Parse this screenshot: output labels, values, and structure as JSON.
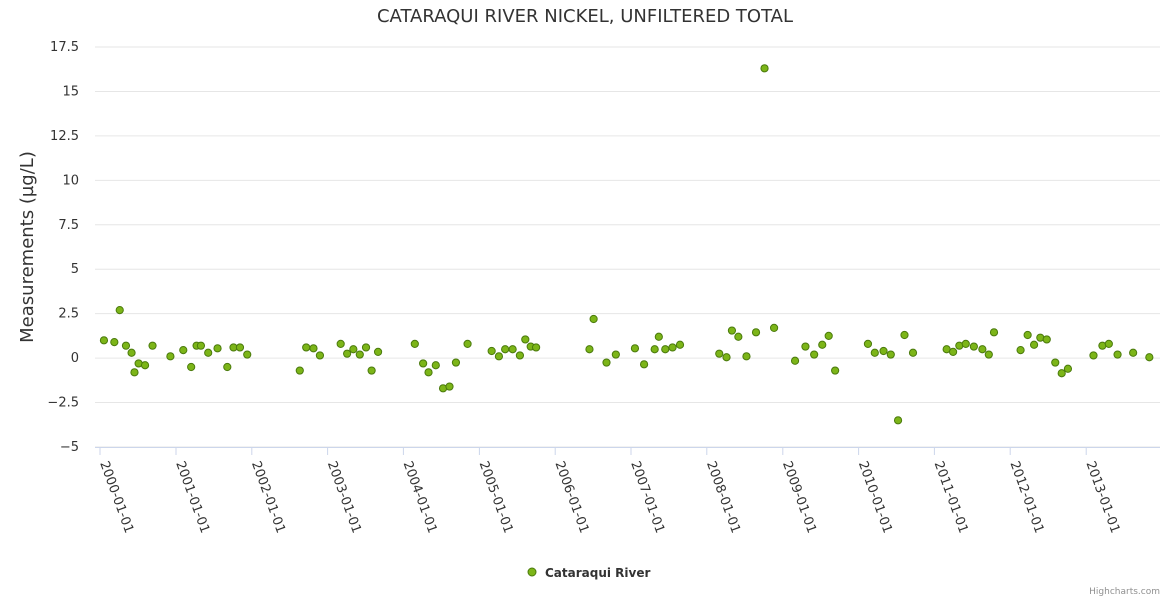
{
  "chart_data": {
    "type": "scatter",
    "title": "CATARAQUI RIVER NICKEL, UNFILTERED TOTAL",
    "xlabel": "",
    "ylabel": "Measurements (µg/L)",
    "xlim": [
      "2000-01-01",
      "2014-01-01"
    ],
    "ylim": [
      -5,
      17.5
    ],
    "y_ticks": [
      -5,
      -2.5,
      0,
      2.5,
      5,
      7.5,
      10,
      12.5,
      15,
      17.5
    ],
    "y_tick_labels": [
      "−5",
      "−2.5",
      "0",
      "2.5",
      "5",
      "7.5",
      "10",
      "12.5",
      "15",
      "17.5"
    ],
    "x_tick_labels": [
      "2000-01-01",
      "2001-01-01",
      "2002-01-01",
      "2003-01-01",
      "2004-01-01",
      "2005-01-01",
      "2006-01-01",
      "2007-01-01",
      "2008-01-01",
      "2009-01-01",
      "2010-01-01",
      "2011-01-01",
      "2012-01-01",
      "2013-01-01"
    ],
    "grid": true,
    "legend_position": "bottom-center",
    "colors": {
      "marker": "#7cb518",
      "marker_stroke": "#4a7a0c"
    },
    "series": [
      {
        "name": "Cataraqui River",
        "points": [
          [
            "2000-01-20",
            1.0
          ],
          [
            "2000-03-10",
            0.9
          ],
          [
            "2000-04-05",
            2.7
          ],
          [
            "2000-05-05",
            0.7
          ],
          [
            "2000-06-01",
            0.3
          ],
          [
            "2000-06-15",
            -0.8
          ],
          [
            "2000-07-05",
            -0.3
          ],
          [
            "2000-08-05",
            -0.4
          ],
          [
            "2000-09-10",
            0.7
          ],
          [
            "2000-12-05",
            0.1
          ],
          [
            "2001-02-05",
            0.45
          ],
          [
            "2001-03-15",
            -0.5
          ],
          [
            "2001-04-10",
            0.7
          ],
          [
            "2001-05-01",
            0.7
          ],
          [
            "2001-06-05",
            0.3
          ],
          [
            "2001-07-20",
            0.55
          ],
          [
            "2001-09-05",
            -0.5
          ],
          [
            "2001-10-05",
            0.6
          ],
          [
            "2001-11-05",
            0.6
          ],
          [
            "2001-12-10",
            0.2
          ],
          [
            "2002-08-20",
            -0.7
          ],
          [
            "2002-09-20",
            0.6
          ],
          [
            "2002-10-25",
            0.55
          ],
          [
            "2002-11-25",
            0.15
          ],
          [
            "2003-03-05",
            0.8
          ],
          [
            "2003-04-05",
            0.25
          ],
          [
            "2003-05-05",
            0.5
          ],
          [
            "2003-06-05",
            0.2
          ],
          [
            "2003-07-05",
            0.6
          ],
          [
            "2003-08-01",
            -0.7
          ],
          [
            "2003-09-01",
            0.35
          ],
          [
            "2004-02-25",
            0.8
          ],
          [
            "2004-04-05",
            -0.3
          ],
          [
            "2004-05-01",
            -0.8
          ],
          [
            "2004-06-05",
            -0.4
          ],
          [
            "2004-07-10",
            -1.7
          ],
          [
            "2004-08-10",
            -1.6
          ],
          [
            "2004-09-10",
            -0.25
          ],
          [
            "2004-11-05",
            0.8
          ],
          [
            "2005-03-01",
            0.4
          ],
          [
            "2005-04-05",
            0.1
          ],
          [
            "2005-05-05",
            0.5
          ],
          [
            "2005-06-10",
            0.5
          ],
          [
            "2005-07-15",
            0.15
          ],
          [
            "2005-08-10",
            1.05
          ],
          [
            "2005-09-05",
            0.65
          ],
          [
            "2005-10-01",
            0.6
          ],
          [
            "2006-06-15",
            0.5
          ],
          [
            "2006-07-05",
            2.2
          ],
          [
            "2006-09-05",
            -0.25
          ],
          [
            "2006-10-20",
            0.2
          ],
          [
            "2007-01-20",
            0.55
          ],
          [
            "2007-03-05",
            -0.35
          ],
          [
            "2007-04-25",
            0.5
          ],
          [
            "2007-05-15",
            1.2
          ],
          [
            "2007-06-15",
            0.5
          ],
          [
            "2007-07-20",
            0.6
          ],
          [
            "2007-08-25",
            0.75
          ],
          [
            "2008-03-01",
            0.25
          ],
          [
            "2008-04-05",
            0.05
          ],
          [
            "2008-05-01",
            1.55
          ],
          [
            "2008-06-01",
            1.2
          ],
          [
            "2008-07-10",
            0.1
          ],
          [
            "2008-08-25",
            1.45
          ],
          [
            "2008-10-05",
            16.3
          ],
          [
            "2008-11-20",
            1.7
          ],
          [
            "2009-03-01",
            -0.15
          ],
          [
            "2009-04-20",
            0.65
          ],
          [
            "2009-06-01",
            0.2
          ],
          [
            "2009-07-10",
            0.75
          ],
          [
            "2009-08-10",
            1.25
          ],
          [
            "2009-09-10",
            -0.7
          ],
          [
            "2010-02-15",
            0.8
          ],
          [
            "2010-03-20",
            0.3
          ],
          [
            "2010-05-01",
            0.4
          ],
          [
            "2010-06-05",
            0.2
          ],
          [
            "2010-07-10",
            -3.5
          ],
          [
            "2010-08-10",
            1.3
          ],
          [
            "2010-09-20",
            0.3
          ],
          [
            "2011-03-01",
            0.5
          ],
          [
            "2011-04-01",
            0.35
          ],
          [
            "2011-05-01",
            0.7
          ],
          [
            "2011-06-01",
            0.8
          ],
          [
            "2011-07-10",
            0.65
          ],
          [
            "2011-08-20",
            0.5
          ],
          [
            "2011-09-20",
            0.2
          ],
          [
            "2011-10-15",
            1.45
          ],
          [
            "2012-02-20",
            0.45
          ],
          [
            "2012-03-25",
            1.3
          ],
          [
            "2012-04-25",
            0.75
          ],
          [
            "2012-05-25",
            1.15
          ],
          [
            "2012-06-25",
            1.05
          ],
          [
            "2012-08-05",
            -0.25
          ],
          [
            "2012-09-05",
            -0.85
          ],
          [
            "2012-10-05",
            -0.6
          ],
          [
            "2013-02-05",
            0.15
          ],
          [
            "2013-03-20",
            0.7
          ],
          [
            "2013-04-20",
            0.8
          ],
          [
            "2013-06-01",
            0.2
          ],
          [
            "2013-08-15",
            0.3
          ],
          [
            "2013-11-01",
            0.05
          ]
        ]
      }
    ]
  },
  "credits": "Highcharts.com"
}
